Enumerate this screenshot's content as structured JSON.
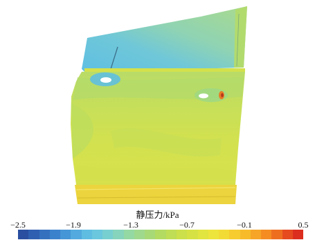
{
  "colorbar": {
    "title": "静压力/kPa",
    "ticks": [
      "−2.5",
      "−1.9",
      "−1.3",
      "−0.7",
      "−0.1",
      "0.5"
    ],
    "colors": [
      "#2a4fa0",
      "#2f5fb0",
      "#3570bf",
      "#3b82cc",
      "#4596d6",
      "#52aade",
      "#5fbde2",
      "#6ac7dd",
      "#78cfd0",
      "#86d4bb",
      "#94d8a3",
      "#9fd98d",
      "#a8d977",
      "#b3db62",
      "#bfdd55",
      "#cbe04a",
      "#d6e244",
      "#e2e440",
      "#ede43c",
      "#f3db36",
      "#f6cc2f",
      "#f7bb2a",
      "#f6a526",
      "#f48c22",
      "#ee6e20",
      "#e64a1f",
      "#dc2e1e"
    ]
  }
}
